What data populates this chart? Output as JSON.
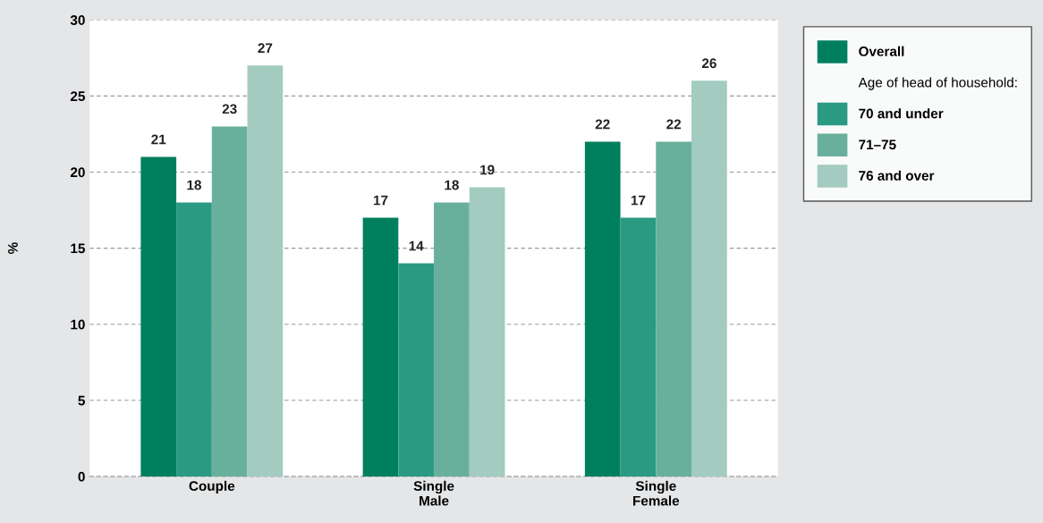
{
  "chart_data": {
    "type": "bar",
    "ylabel": "%",
    "categories": [
      "Couple",
      "Single\nMale",
      "Single\nFemale"
    ],
    "series": [
      {
        "name": "Overall",
        "color": "#007f5f",
        "values": [
          21,
          17,
          22
        ]
      },
      {
        "name": "70 and under",
        "color": "#2a9a83",
        "values": [
          18,
          14,
          17
        ]
      },
      {
        "name": "71–75",
        "color": "#69b09c",
        "values": [
          23,
          18,
          22
        ]
      },
      {
        "name": "76 and over",
        "color": "#a3cbbf",
        "values": [
          27,
          19,
          26
        ]
      }
    ],
    "legend_title": "Age of head of household:",
    "ylim": [
      0,
      30
    ],
    "yticks": [
      0,
      5,
      10,
      15,
      20,
      25,
      30
    ],
    "grid": "y",
    "legend": "top right",
    "data_labels": true
  }
}
